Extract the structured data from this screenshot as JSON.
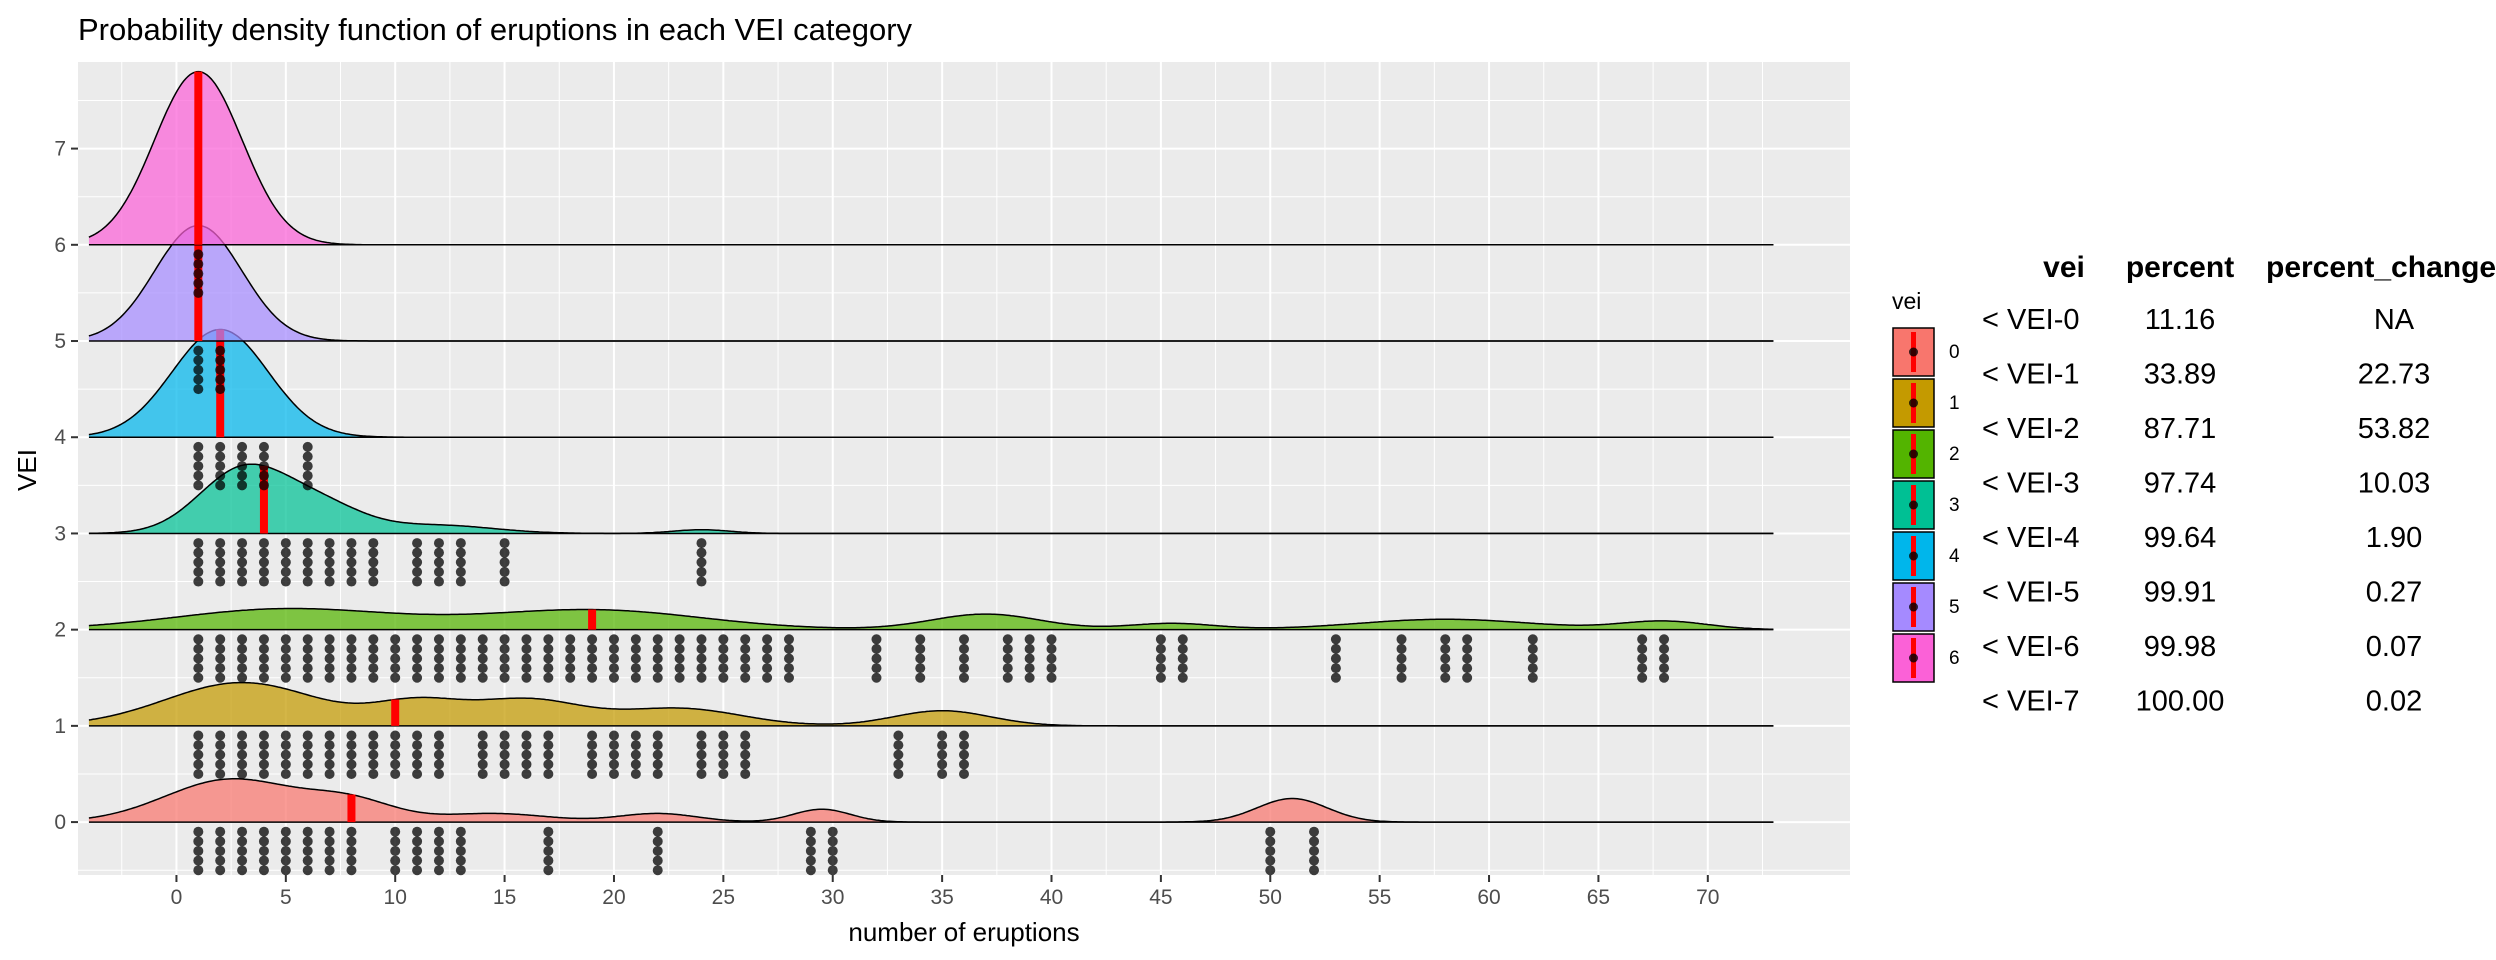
{
  "chart_data": {
    "type": "ridgeline",
    "title": "Probability density function of eruptions in each VEI category",
    "xlabel": "number of eruptions",
    "ylabel": "VEI",
    "xlim": [
      -4.5,
      76.5
    ],
    "ylim": [
      -0.55,
      7.9
    ],
    "x_ticks": [
      0,
      5,
      10,
      15,
      20,
      25,
      30,
      35,
      40,
      45,
      50,
      55,
      60,
      65,
      70
    ],
    "y_ticks": [
      0,
      1,
      2,
      3,
      4,
      5,
      6,
      7
    ],
    "ridge_range": [
      -4,
      73
    ],
    "grid": true,
    "legend": {
      "title": "vei",
      "placement": "right",
      "entries": [
        "0",
        "1",
        "2",
        "3",
        "4",
        "5",
        "6"
      ]
    },
    "series": [
      {
        "name": "0",
        "color": "#F8766D",
        "median": 8,
        "scale": 0.45,
        "peaks": [
          [
            2.5,
            3.0,
            1.0
          ],
          [
            8.0,
            2.0,
            0.45
          ],
          [
            14.5,
            2.5,
            0.2
          ],
          [
            22.0,
            1.8,
            0.2
          ],
          [
            29.5,
            1.3,
            0.3
          ],
          [
            51.0,
            1.6,
            0.55
          ]
        ],
        "points": [
          1,
          2,
          3,
          4,
          5,
          6,
          7,
          8,
          10,
          11,
          12,
          13,
          17,
          22,
          29,
          30,
          50,
          52
        ]
      },
      {
        "name": "1",
        "color": "#C49A00",
        "median": 10,
        "scale": 0.45,
        "peaks": [
          [
            3.0,
            3.5,
            1.0
          ],
          [
            11.0,
            2.0,
            0.5
          ],
          [
            16.0,
            2.5,
            0.6
          ],
          [
            23.0,
            2.8,
            0.4
          ],
          [
            35.0,
            2.2,
            0.35
          ]
        ],
        "points": [
          1,
          2,
          3,
          4,
          5,
          6,
          7,
          8,
          9,
          10,
          11,
          12,
          14,
          15,
          16,
          17,
          19,
          20,
          21,
          22,
          24,
          25,
          26,
          33,
          35,
          36
        ]
      },
      {
        "name": "2",
        "color": "#53B400",
        "median": 19,
        "scale": 0.22,
        "peaks": [
          [
            5.0,
            5.0,
            1.0
          ],
          [
            19.0,
            5.0,
            0.95
          ],
          [
            37.0,
            2.5,
            0.75
          ],
          [
            45.5,
            2.0,
            0.3
          ],
          [
            58.0,
            4.0,
            0.5
          ],
          [
            68.0,
            2.0,
            0.4
          ]
        ],
        "points": [
          1,
          2,
          3,
          4,
          5,
          6,
          7,
          8,
          9,
          10,
          11,
          12,
          13,
          14,
          15,
          16,
          17,
          18,
          19,
          20,
          21,
          22,
          23,
          24,
          25,
          26,
          27,
          28,
          32,
          34,
          36,
          38,
          39,
          40,
          45,
          46,
          53,
          56,
          58,
          59,
          62,
          67,
          68
        ]
      },
      {
        "name": "3",
        "color": "#00C094",
        "median": 4,
        "scale": 0.72,
        "peaks": [
          [
            3.0,
            2.0,
            1.0
          ],
          [
            6.5,
            2.0,
            0.45
          ],
          [
            12.0,
            2.5,
            0.13
          ],
          [
            24.0,
            1.3,
            0.06
          ]
        ],
        "points": [
          1,
          2,
          3,
          4,
          5,
          6,
          7,
          8,
          9,
          11,
          12,
          13,
          15,
          24
        ]
      },
      {
        "name": "4",
        "color": "#00B6EB",
        "median": 2,
        "scale": 1.12,
        "peaks": [
          [
            2.0,
            2.2,
            1.0
          ]
        ],
        "points": [
          1,
          2,
          3,
          4,
          6
        ]
      },
      {
        "name": "5",
        "color": "#A58AFF",
        "median": 1,
        "scale": 1.2,
        "peaks": [
          [
            1.0,
            2.0,
            1.0
          ]
        ],
        "points": [
          1,
          2
        ]
      },
      {
        "name": "6",
        "color": "#FB61D7",
        "median": 1,
        "scale": 1.8,
        "peaks": [
          [
            1.0,
            2.0,
            1.0
          ]
        ],
        "points": [
          1
        ]
      }
    ]
  },
  "table": {
    "headers": [
      "vei",
      "percent",
      "percent_change"
    ],
    "rows": [
      [
        "< VEI-0",
        "11.16",
        "NA"
      ],
      [
        "< VEI-1",
        "33.89",
        "22.73"
      ],
      [
        "< VEI-2",
        "87.71",
        "53.82"
      ],
      [
        "< VEI-3",
        "97.74",
        "10.03"
      ],
      [
        "< VEI-4",
        "99.64",
        "1.90"
      ],
      [
        "< VEI-5",
        "99.91",
        "0.27"
      ],
      [
        "< VEI-6",
        "99.98",
        "0.07"
      ],
      [
        "< VEI-7",
        "100.00",
        "0.02"
      ]
    ]
  }
}
